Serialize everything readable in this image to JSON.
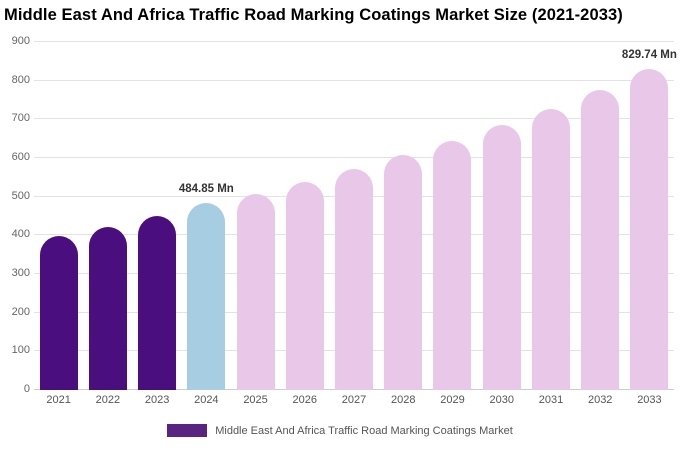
{
  "title": "Middle East And Africa Traffic Road Marking Coatings Market Size (2021-2033)",
  "legend": {
    "label": "Middle East And Africa Traffic Road Marking Coatings Market",
    "swatch_color": "#5a2382"
  },
  "colors": {
    "dark_purple": "#4b0e7e",
    "highlight_blue": "#a6cde2",
    "light_pink": "#e8c7e9",
    "gridline": "#e3e3e3"
  },
  "chart_data": {
    "type": "bar",
    "title": "Middle East And Africa Traffic Road Marking Coatings Market Size (2021-2033)",
    "categories": [
      "2021",
      "2022",
      "2023",
      "2024",
      "2025",
      "2026",
      "2027",
      "2028",
      "2029",
      "2030",
      "2031",
      "2032",
      "2033"
    ],
    "values": [
      398,
      422,
      450,
      484.85,
      508,
      538,
      572,
      607,
      645,
      685,
      728,
      775,
      829.74
    ],
    "bar_colors": [
      "#4b0e7e",
      "#4b0e7e",
      "#4b0e7e",
      "#a6cde2",
      "#e8c7e9",
      "#e8c7e9",
      "#e8c7e9",
      "#e8c7e9",
      "#e8c7e9",
      "#e8c7e9",
      "#e8c7e9",
      "#e8c7e9",
      "#e8c7e9"
    ],
    "annotations": [
      {
        "index": 3,
        "text": "484.85 Mn"
      },
      {
        "index": 12,
        "text": "829.74 Mn"
      }
    ],
    "xlabel": "",
    "ylabel": "",
    "ylim": [
      0,
      900
    ],
    "yticks": [
      0,
      100,
      200,
      300,
      400,
      500,
      600,
      700,
      800,
      900
    ],
    "grid": true,
    "legend_position": "bottom",
    "unit": "Mn"
  }
}
